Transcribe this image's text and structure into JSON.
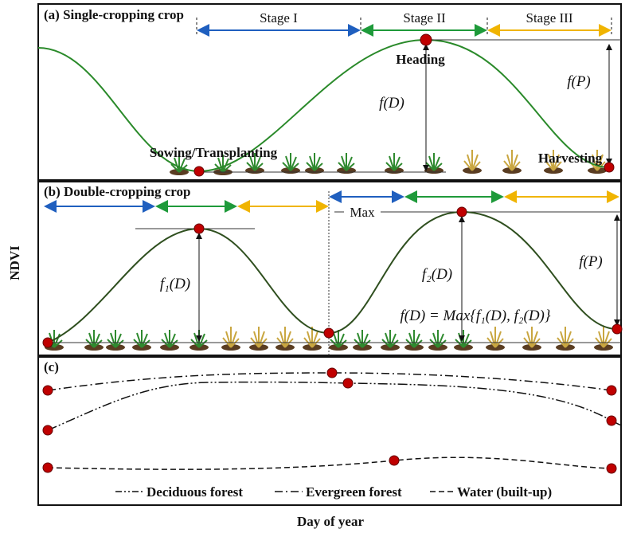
{
  "axes": {
    "y_label": "NDVI",
    "x_label": "Day of year"
  },
  "panel_a": {
    "title": "(a) Single-cropping crop",
    "stages": [
      "Stage I",
      "Stage II",
      "Stage III"
    ],
    "heading": "Heading",
    "fd": "f(D)",
    "fp": "f(P)",
    "sowing": "Sowing/Transplanting",
    "harvesting": "Harvesting"
  },
  "panel_b": {
    "title": "(b) Double-cropping crop",
    "max": "Max",
    "f1d": "f₁(D)",
    "f2d": "f₂(D)",
    "fp": "f(P)",
    "formula": "f(D) = Max{f₁(D), f₂(D)}"
  },
  "panel_c": {
    "title": "(c)",
    "legend": [
      "Deciduous forest",
      "Evergreen forest",
      "Water (built-up)"
    ]
  }
}
